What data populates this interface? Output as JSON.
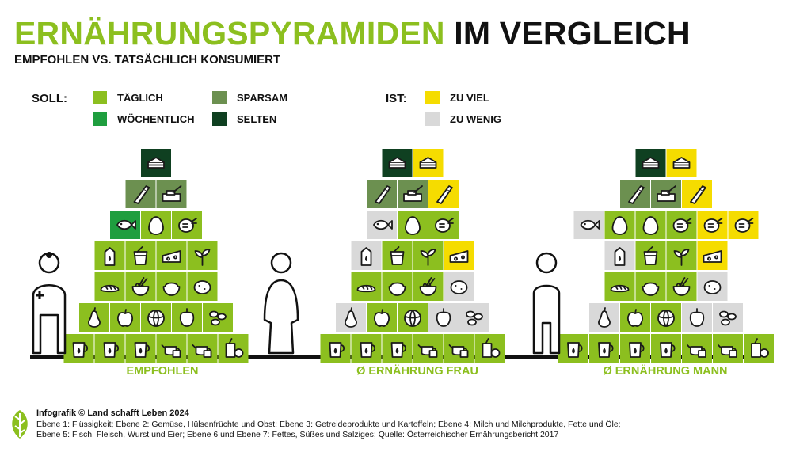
{
  "header": {
    "title_green": "ERNÄHRUNGSPYRAMIDEN",
    "title_black": "IM VERGLEICH",
    "subtitle": "EMPFOHLEN VS. TATSÄCHLICH KONSUMIERT"
  },
  "legend": {
    "soll_label": "SOLL:",
    "ist_label": "IST:",
    "soll_items": [
      {
        "label": "TÄGLICH",
        "color": "#8cbf1f"
      },
      {
        "label": "WÖCHENTLICH",
        "color": "#1f9e3f"
      },
      {
        "label": "SPARSAM",
        "color": "#6c9050"
      },
      {
        "label": "SELTEN",
        "color": "#0f4021"
      }
    ],
    "ist_items": [
      {
        "label": "ZU VIEL",
        "color": "#f5dc00"
      },
      {
        "label": "ZU WENIG",
        "color": "#d9d9d9"
      }
    ]
  },
  "captions": [
    "EMPFOHLEN",
    "Ø ERNÄHRUNG FRAU",
    "Ø ERNÄHRUNG MANN"
  ],
  "pyramids": [
    {
      "name": "empfohlen",
      "levels": [
        [
          {
            "icon": "cake-icon",
            "fill": "selten"
          }
        ],
        [
          {
            "icon": "oil-bottle-icon",
            "fill": "sparsam"
          },
          {
            "icon": "butter-icon",
            "fill": "sparsam"
          }
        ],
        [
          {
            "icon": "fish-icon",
            "fill": "woechentlich"
          },
          {
            "icon": "egg-icon",
            "fill": "taeglich"
          },
          {
            "icon": "chicken-icon",
            "fill": "taeglich"
          }
        ],
        [
          {
            "icon": "milk-icon",
            "fill": "taeglich"
          },
          {
            "icon": "yogurt-icon",
            "fill": "taeglich"
          },
          {
            "icon": "cheese-icon",
            "fill": "taeglich"
          },
          {
            "icon": "seeds-icon",
            "fill": "taeglich"
          }
        ],
        [
          {
            "icon": "bread-icon",
            "fill": "taeglich"
          },
          {
            "icon": "noodles-icon",
            "fill": "taeglich"
          },
          {
            "icon": "rice-icon",
            "fill": "taeglich"
          },
          {
            "icon": "potato-icon",
            "fill": "taeglich"
          }
        ],
        [
          {
            "icon": "pear-icon",
            "fill": "taeglich"
          },
          {
            "icon": "apple-icon",
            "fill": "taeglich"
          },
          {
            "icon": "cabbage-icon",
            "fill": "taeglich"
          },
          {
            "icon": "pepper-icon",
            "fill": "taeglich"
          },
          {
            "icon": "beans-icon",
            "fill": "taeglich"
          }
        ],
        [
          {
            "icon": "water-jug-icon",
            "fill": "taeglich"
          },
          {
            "icon": "water-jug-icon",
            "fill": "taeglich"
          },
          {
            "icon": "water-jug-icon",
            "fill": "taeglich"
          },
          {
            "icon": "teapot-icon",
            "fill": "taeglich"
          },
          {
            "icon": "teapot-icon",
            "fill": "taeglich"
          },
          {
            "icon": "juice-icon",
            "fill": "taeglich"
          }
        ]
      ]
    },
    {
      "name": "frau",
      "levels": [
        [
          {
            "icon": "cake-icon",
            "fill": "selten"
          },
          {
            "icon": "cake-icon",
            "fill": "viel"
          }
        ],
        [
          {
            "icon": "oil-bottle-icon",
            "fill": "sparsam"
          },
          {
            "icon": "butter-icon",
            "fill": "sparsam"
          },
          {
            "icon": "oil-bottle-icon",
            "fill": "viel"
          }
        ],
        [
          {
            "icon": "fish-icon",
            "fill": "wenig"
          },
          {
            "icon": "egg-icon",
            "fill": "taeglich"
          },
          {
            "icon": "chicken-icon",
            "fill": "taeglich"
          }
        ],
        [
          {
            "icon": "milk-icon",
            "fill": "wenig"
          },
          {
            "icon": "yogurt-icon",
            "fill": "taeglich"
          },
          {
            "icon": "seeds-icon",
            "fill": "taeglich"
          },
          {
            "icon": "cheese-icon",
            "fill": "viel"
          }
        ],
        [
          {
            "icon": "bread-icon",
            "fill": "taeglich"
          },
          {
            "icon": "rice-icon",
            "fill": "taeglich"
          },
          {
            "icon": "noodles-icon",
            "fill": "taeglich"
          },
          {
            "icon": "potato-icon",
            "fill": "wenig"
          }
        ],
        [
          {
            "icon": "pear-icon",
            "fill": "wenig"
          },
          {
            "icon": "apple-icon",
            "fill": "taeglich"
          },
          {
            "icon": "cabbage-icon",
            "fill": "taeglich"
          },
          {
            "icon": "pepper-icon",
            "fill": "wenig"
          },
          {
            "icon": "beans-icon",
            "fill": "wenig"
          }
        ],
        [
          {
            "icon": "water-jug-icon",
            "fill": "taeglich"
          },
          {
            "icon": "water-jug-icon",
            "fill": "taeglich"
          },
          {
            "icon": "water-jug-icon",
            "fill": "taeglich"
          },
          {
            "icon": "teapot-icon",
            "fill": "taeglich"
          },
          {
            "icon": "teapot-icon",
            "fill": "taeglich"
          },
          {
            "icon": "juice-icon",
            "fill": "taeglich"
          }
        ]
      ]
    },
    {
      "name": "mann",
      "levels": [
        [
          {
            "icon": "cake-icon",
            "fill": "selten"
          },
          {
            "icon": "cake-icon",
            "fill": "viel"
          }
        ],
        [
          {
            "icon": "oil-bottle-icon",
            "fill": "sparsam"
          },
          {
            "icon": "butter-icon",
            "fill": "sparsam"
          },
          {
            "icon": "oil-bottle-icon",
            "fill": "viel"
          }
        ],
        [
          {
            "icon": "fish-icon",
            "fill": "wenig"
          },
          {
            "icon": "egg-icon",
            "fill": "taeglich"
          },
          {
            "icon": "egg-icon",
            "fill": "taeglich"
          },
          {
            "icon": "chicken-icon",
            "fill": "taeglich"
          },
          {
            "icon": "chicken-icon",
            "fill": "viel"
          },
          {
            "icon": "chicken-icon",
            "fill": "viel"
          }
        ],
        [
          {
            "icon": "milk-icon",
            "fill": "wenig"
          },
          {
            "icon": "yogurt-icon",
            "fill": "taeglich"
          },
          {
            "icon": "seeds-icon",
            "fill": "taeglich"
          },
          {
            "icon": "cheese-icon",
            "fill": "viel"
          }
        ],
        [
          {
            "icon": "bread-icon",
            "fill": "taeglich"
          },
          {
            "icon": "rice-icon",
            "fill": "taeglich"
          },
          {
            "icon": "noodles-icon",
            "fill": "taeglich"
          },
          {
            "icon": "potato-icon",
            "fill": "wenig"
          }
        ],
        [
          {
            "icon": "pear-icon",
            "fill": "wenig"
          },
          {
            "icon": "apple-icon",
            "fill": "taeglich"
          },
          {
            "icon": "cabbage-icon",
            "fill": "taeglich"
          },
          {
            "icon": "pepper-icon",
            "fill": "wenig"
          },
          {
            "icon": "beans-icon",
            "fill": "wenig"
          }
        ],
        [
          {
            "icon": "water-jug-icon",
            "fill": "taeglich"
          },
          {
            "icon": "water-jug-icon",
            "fill": "taeglich"
          },
          {
            "icon": "water-jug-icon",
            "fill": "taeglich"
          },
          {
            "icon": "water-jug-icon",
            "fill": "taeglich"
          },
          {
            "icon": "teapot-icon",
            "fill": "taeglich"
          },
          {
            "icon": "teapot-icon",
            "fill": "taeglich"
          },
          {
            "icon": "juice-icon",
            "fill": "taeglich"
          }
        ]
      ]
    }
  ],
  "figures": [
    {
      "icon": "doctor-icon"
    },
    {
      "icon": "woman-icon"
    },
    {
      "icon": "man-icon"
    }
  ],
  "footer": {
    "credit": "Infografik © Land schafft Leben 2024",
    "note_line1": "Ebene 1: Flüssigkeit; Ebene 2: Gemüse, Hülsenfrüchte und Obst; Ebene 3: Getreideprodukte und Kartoffeln; Ebene 4: Milch und Milchprodukte, Fette und Öle;",
    "note_line2": "Ebene 5: Fisch, Fleisch, Wurst und Eier; Ebene 6 und Ebene 7: Fettes, Süßes und Salziges; Quelle: Österreichischer Ernährungsbericht 2017",
    "logo_icon": "leaf-logo-icon"
  }
}
